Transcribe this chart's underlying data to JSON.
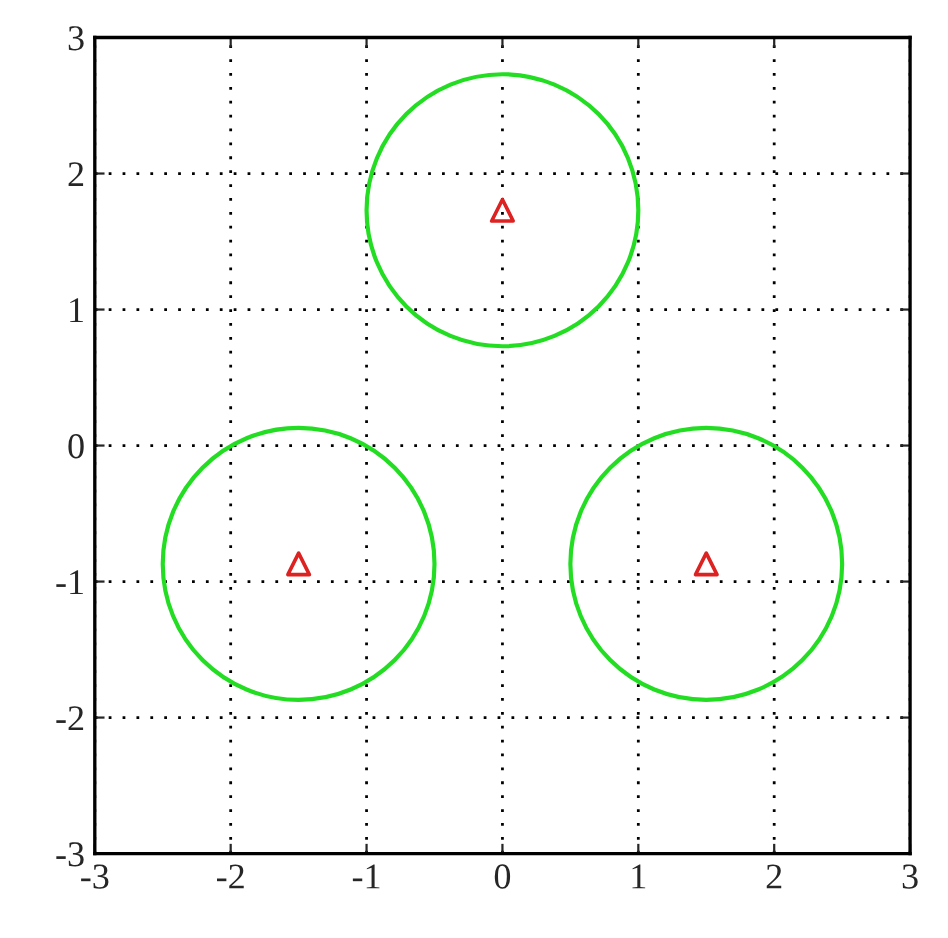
{
  "chart_data": {
    "type": "scatter",
    "xlim": [
      -3,
      3
    ],
    "ylim": [
      -3,
      3
    ],
    "xticks": [
      -3,
      -2,
      -1,
      0,
      1,
      2,
      3
    ],
    "yticks": [
      -3,
      -2,
      -1,
      0,
      1,
      2,
      3
    ],
    "grid": true,
    "legend": false,
    "series": [
      {
        "color": "#dd2222",
        "marker": "triangle",
        "x": [
          0,
          -1.5,
          1.5
        ],
        "values": [
          1.73,
          -0.87,
          -0.87
        ]
      }
    ]
  }
}
